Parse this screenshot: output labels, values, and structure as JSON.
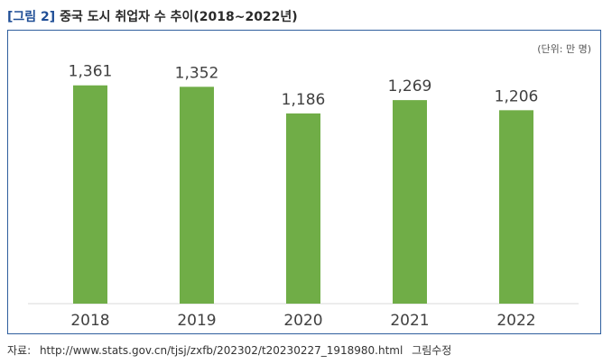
{
  "figure": {
    "number_label": "[그림 2]",
    "title": "중국 도시 취업자 수 추이(2018~2022년)"
  },
  "chart_data": {
    "type": "bar",
    "unit_label": "(단위: 만 명)",
    "categories": [
      "2018",
      "2019",
      "2020",
      "2021",
      "2022"
    ],
    "values": [
      1361,
      1352,
      1186,
      1269,
      1206
    ],
    "value_labels": [
      "1,361",
      "1,352",
      "1,186",
      "1,269",
      "1,206"
    ],
    "ylim": [
      0,
      1500
    ],
    "grid": false,
    "bar_color": "#70ad47",
    "xlabel": "",
    "ylabel": ""
  },
  "source": {
    "label": "자료:",
    "url": "http://www.stats.gov.cn/tjsj/zxfb/202302/t20230227_1918980.html",
    "note": "그림수정"
  }
}
